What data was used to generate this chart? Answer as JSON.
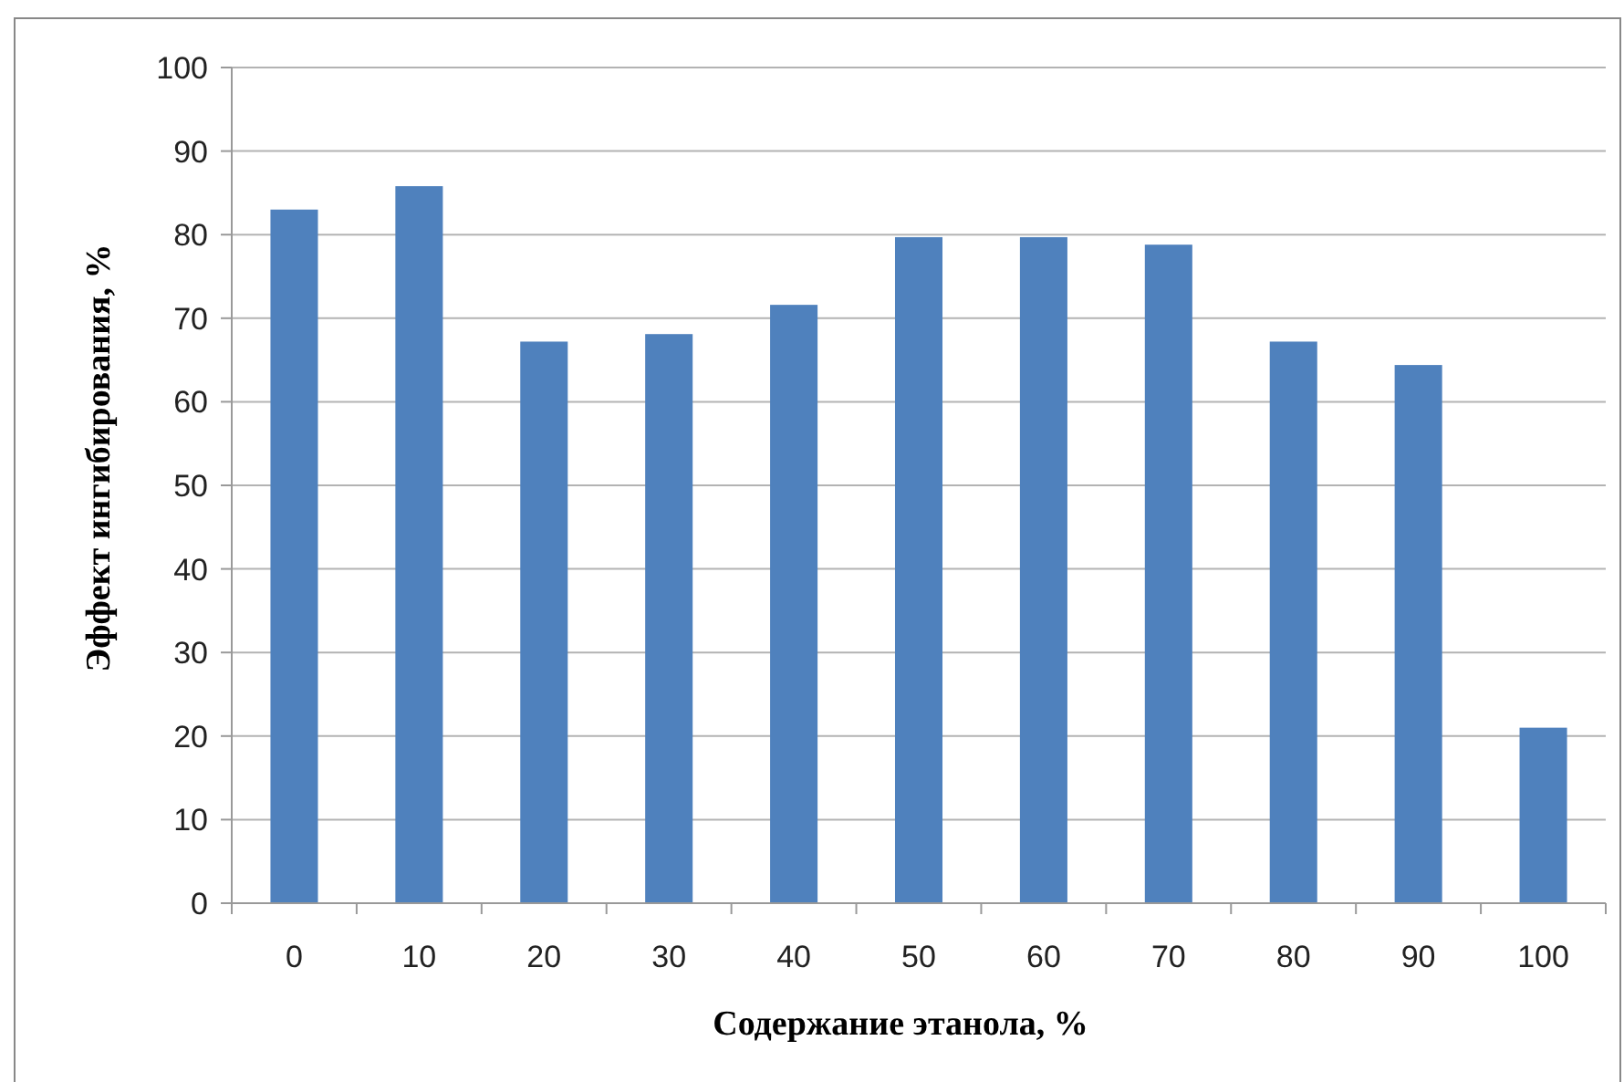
{
  "chart_data": {
    "type": "bar",
    "xlabel": "Содержание этанола, %",
    "ylabel": "Эффект ингибирования, %",
    "categories": [
      "0",
      "10",
      "20",
      "30",
      "40",
      "50",
      "60",
      "70",
      "80",
      "90",
      "100"
    ],
    "values": [
      83,
      85.8,
      67.2,
      68.1,
      71.6,
      79.7,
      79.7,
      78.8,
      67.2,
      64.4,
      21
    ],
    "color": "#4f81bd",
    "ylim": [
      0,
      100
    ],
    "yticks": [
      0,
      10,
      20,
      30,
      40,
      50,
      60,
      70,
      80,
      90,
      100
    ],
    "grid": "y"
  }
}
